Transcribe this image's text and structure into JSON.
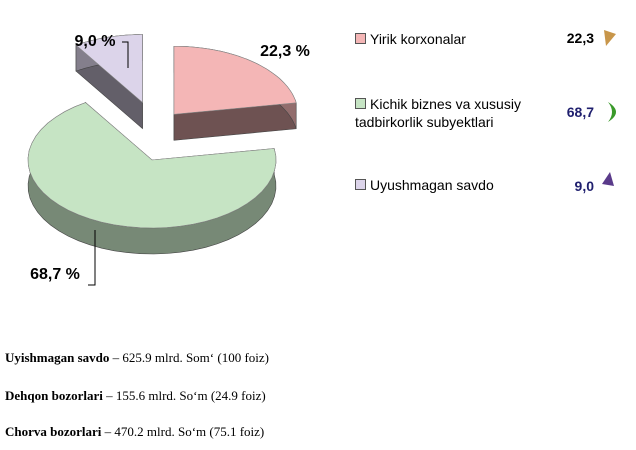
{
  "chart_data": {
    "type": "pie",
    "categories": [
      "Yirik korxonalar",
      "Kichik biznes va xususiy tadbirkorlik subyektlari",
      "Uyushmagan savdo"
    ],
    "values": [
      22.3,
      68.7,
      9.0
    ],
    "value_labels": [
      "22,3 %",
      "68,7 %",
      "9,0 %"
    ],
    "legend_value_labels": [
      "22,3",
      "68,7",
      "9,0"
    ],
    "colors": [
      "#f4b6b6",
      "#c6e4c4",
      "#dcd4ea"
    ]
  },
  "notes": [
    {
      "bold": "Uyishmagan savdo",
      "text": " – 625.9 mlrd. Som‘ (100 foiz)"
    },
    {
      "bold": "Dehqon bozorlari",
      "text": " – 155.6 mlrd. So‘m (24.9 foiz)"
    },
    {
      "bold": "Chorva bozorlari",
      "text": " – 470.2 mlrd. So‘m  (75.1 foiz)"
    }
  ]
}
